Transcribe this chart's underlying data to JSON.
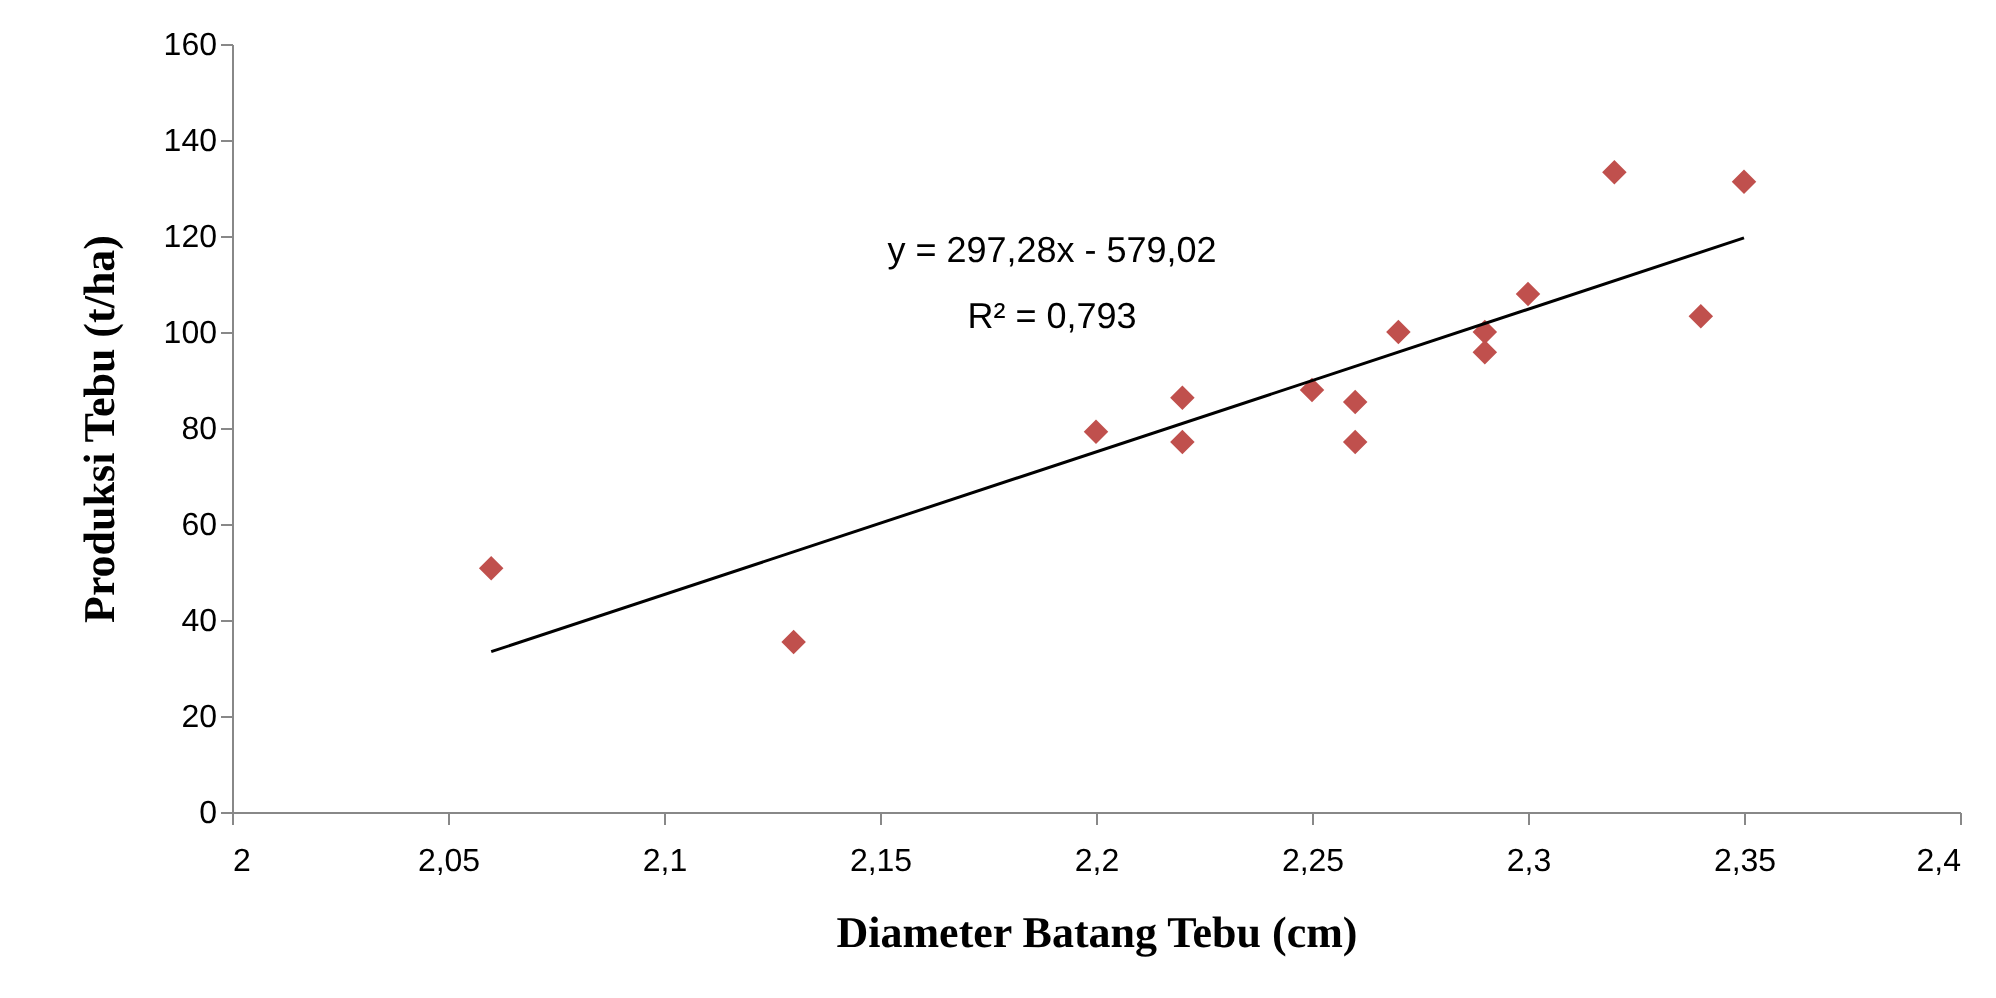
{
  "chart_data": {
    "type": "scatter",
    "xlabel": "Diameter Batang Tebu (cm)",
    "ylabel": "Produksi Tebu (t/ha)",
    "annotations": [
      "y = 297,28x - 579,02",
      "R² = 0,793"
    ],
    "xlim": [
      2,
      2.4
    ],
    "xticks": [
      2,
      {
        "value": 2.05,
        "label": "2,05"
      },
      {
        "value": 2.1,
        "label": "2,1"
      },
      {
        "value": 2.15,
        "label": "2,15"
      },
      {
        "value": 2.2,
        "label": "2,2"
      },
      {
        "value": 2.25,
        "label": "2,25"
      },
      {
        "value": 2.3,
        "label": "2,3"
      },
      {
        "value": 2.35,
        "label": "2,35"
      },
      {
        "value": 2.4,
        "label": "2,4"
      }
    ],
    "ylim": [
      0,
      160
    ],
    "yticks": [
      0,
      20,
      40,
      60,
      80,
      100,
      120,
      140,
      160
    ],
    "grid": false,
    "marker": "diamond",
    "series": [
      {
        "color": "#c0504d",
        "x": [
          2.06,
          2.13,
          2.2,
          2.22,
          2.22,
          2.25,
          2.26,
          2.26,
          2.27,
          2.29,
          2.29,
          2.3,
          2.32,
          2.34,
          2.35
        ],
        "values": [
          50.8,
          35.4,
          79.2,
          86.3,
          77.1,
          87.9,
          85.4,
          77.1,
          100,
          100,
          95.8,
          107.9,
          133.3,
          103.3,
          131.3
        ]
      },
      {
        "type": "line",
        "color": "#000000",
        "marker": "none",
        "x": [
          2.06,
          2.35
        ],
        "values": [
          33.4,
          119.6
        ]
      }
    ]
  }
}
